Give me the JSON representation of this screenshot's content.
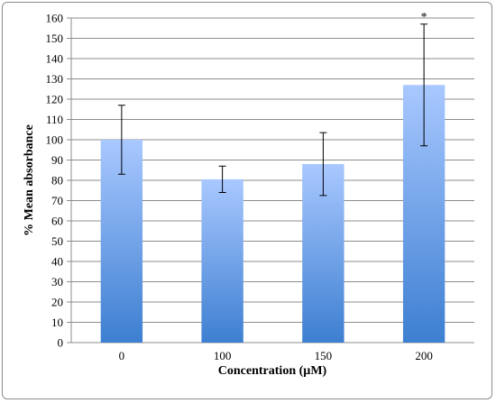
{
  "chart_data": {
    "type": "bar",
    "title": "",
    "xlabel": "Concentration (µM)",
    "ylabel": "% Mean absorbance",
    "categories": [
      "0",
      "100",
      "150",
      "200"
    ],
    "values": [
      100,
      80.5,
      88,
      127
    ],
    "error": [
      17,
      6.5,
      15.5,
      30
    ],
    "annotations": [
      "",
      "",
      "",
      "*"
    ],
    "ylim": [
      0,
      160
    ],
    "ytick_step": 10,
    "grid": true,
    "colors": {
      "bar_top": "#a9c8ff",
      "bar_bottom": "#3d7fd1",
      "grid": "#8c8c8c",
      "axis": "#8c8c8c"
    }
  }
}
